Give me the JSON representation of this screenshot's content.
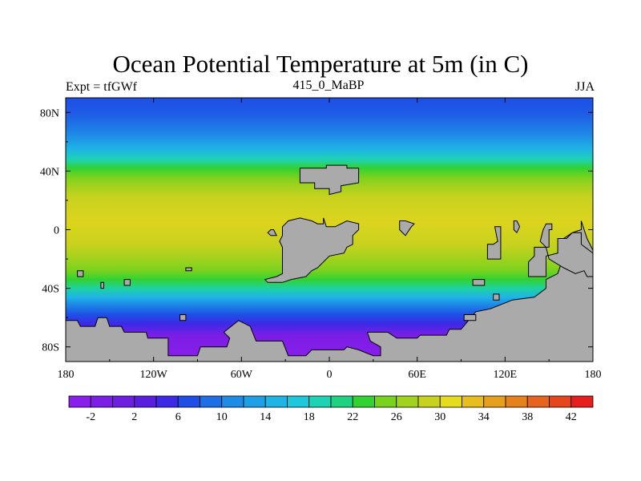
{
  "title": "Ocean Potential Temperature at 5m (in C)",
  "subtitle_left": "Expt = tfGWf",
  "subtitle_center": "415_0_MaBP",
  "subtitle_right": "JJA",
  "axes": {
    "lon_ticks": [
      {
        "value": -180,
        "label": "180"
      },
      {
        "value": -120,
        "label": "120W"
      },
      {
        "value": -60,
        "label": "60W"
      },
      {
        "value": 0,
        "label": "0"
      },
      {
        "value": 60,
        "label": "60E"
      },
      {
        "value": 120,
        "label": "120E"
      },
      {
        "value": 180,
        "label": "180"
      }
    ],
    "lat_ticks": [
      {
        "value": 80,
        "label": "80N"
      },
      {
        "value": 40,
        "label": "40N"
      },
      {
        "value": 0,
        "label": "0"
      },
      {
        "value": -40,
        "label": "40S"
      },
      {
        "value": -80,
        "label": "80S"
      }
    ],
    "lon_range": [
      -180,
      180
    ],
    "lat_range": [
      -90,
      90
    ]
  },
  "colorbar": {
    "colors": [
      "#8a1eeb",
      "#7b1ee6",
      "#6e1ee0",
      "#5a1ee0",
      "#3c2ae6",
      "#1e4ee6",
      "#1e6ee6",
      "#1e8ce6",
      "#1ea0e6",
      "#1eb4e6",
      "#1ec8dc",
      "#1ed2b4",
      "#1ed282",
      "#32d232",
      "#78d21e",
      "#a0d21e",
      "#c8d21e",
      "#e6dc1e",
      "#e6be1e",
      "#e6a01e",
      "#e6821e",
      "#e6641e",
      "#e6461e",
      "#e61e1e"
    ],
    "labels": [
      "-2",
      "2",
      "6",
      "10",
      "14",
      "18",
      "22",
      "26",
      "30",
      "34",
      "38",
      "42"
    ]
  },
  "zonal_temperature": [
    {
      "lat": 90,
      "color": "#1e50e6"
    },
    {
      "lat": 80,
      "color": "#1e5ae6"
    },
    {
      "lat": 70,
      "color": "#1e78e6"
    },
    {
      "lat": 62,
      "color": "#1e96e6"
    },
    {
      "lat": 55,
      "color": "#1eb4e6"
    },
    {
      "lat": 48,
      "color": "#1ed2b4"
    },
    {
      "lat": 42,
      "color": "#32d232"
    },
    {
      "lat": 36,
      "color": "#78d21e"
    },
    {
      "lat": 30,
      "color": "#a0d21e"
    },
    {
      "lat": 22,
      "color": "#c8d21e"
    },
    {
      "lat": 5,
      "color": "#dcd41e"
    },
    {
      "lat": -10,
      "color": "#c8d21e"
    },
    {
      "lat": -20,
      "color": "#a0d21e"
    },
    {
      "lat": -28,
      "color": "#78d21e"
    },
    {
      "lat": -34,
      "color": "#32d232"
    },
    {
      "lat": -40,
      "color": "#1ed2a0"
    },
    {
      "lat": -46,
      "color": "#1eb4e6"
    },
    {
      "lat": -52,
      "color": "#1e82e6"
    },
    {
      "lat": -58,
      "color": "#1e50e6"
    },
    {
      "lat": -64,
      "color": "#3c2ae6"
    },
    {
      "lat": -72,
      "color": "#7b1ee6"
    },
    {
      "lat": -90,
      "color": "#8a1eeb"
    }
  ],
  "land_color": "#aaaaaa",
  "land_masses": [
    {
      "name": "land-antarctica",
      "points": [
        [
          -180,
          -62
        ],
        [
          -172,
          -62
        ],
        [
          -170,
          -66
        ],
        [
          -160,
          -66
        ],
        [
          -158,
          -60
        ],
        [
          -152,
          -60
        ],
        [
          -150,
          -66
        ],
        [
          -142,
          -66
        ],
        [
          -140,
          -70
        ],
        [
          -125,
          -70
        ],
        [
          -124,
          -74
        ],
        [
          -110,
          -74
        ],
        [
          -110,
          -86
        ],
        [
          -90,
          -86
        ],
        [
          -88,
          -80
        ],
        [
          -70,
          -80
        ],
        [
          -68,
          -74
        ],
        [
          -72,
          -70
        ],
        [
          -62,
          -62
        ],
        [
          -54,
          -66
        ],
        [
          -50,
          -76
        ],
        [
          -32,
          -76
        ],
        [
          -28,
          -86
        ],
        [
          -16,
          -86
        ],
        [
          -12,
          -82
        ],
        [
          10,
          -82
        ],
        [
          12,
          -80
        ],
        [
          20,
          -82
        ],
        [
          30,
          -86
        ],
        [
          35,
          -86
        ],
        [
          35,
          -80
        ],
        [
          28,
          -76
        ],
        [
          26,
          -70
        ],
        [
          40,
          -70
        ],
        [
          46,
          -74
        ],
        [
          60,
          -74
        ],
        [
          62,
          -72
        ],
        [
          80,
          -72
        ],
        [
          82,
          -68
        ],
        [
          90,
          -68
        ],
        [
          95,
          -62
        ],
        [
          100,
          -56
        ],
        [
          110,
          -54
        ],
        [
          125,
          -48
        ],
        [
          140,
          -46
        ],
        [
          148,
          -40
        ],
        [
          148,
          -34
        ],
        [
          156,
          -30
        ],
        [
          160,
          -18
        ],
        [
          160,
          -6
        ],
        [
          166,
          -2
        ],
        [
          172,
          0
        ],
        [
          172,
          6
        ],
        [
          176,
          -6
        ],
        [
          180,
          -14
        ],
        [
          180,
          -90
        ],
        [
          -180,
          -90
        ]
      ]
    },
    {
      "name": "land-north-landmass",
      "points": [
        [
          -20,
          38
        ],
        [
          -20,
          32
        ],
        [
          -10,
          32
        ],
        [
          -10,
          28
        ],
        [
          0,
          28
        ],
        [
          0,
          24
        ],
        [
          8,
          26
        ],
        [
          8,
          30
        ],
        [
          20,
          32
        ],
        [
          20,
          42
        ],
        [
          12,
          42
        ],
        [
          12,
          44
        ],
        [
          -2,
          44
        ],
        [
          -2,
          42
        ],
        [
          -20,
          42
        ]
      ]
    },
    {
      "name": "land-central-landmass",
      "points": [
        [
          -32,
          2
        ],
        [
          -28,
          6
        ],
        [
          -20,
          8
        ],
        [
          -12,
          6
        ],
        [
          -8,
          4
        ],
        [
          -4,
          4
        ],
        [
          -4,
          8
        ],
        [
          -2,
          2
        ],
        [
          4,
          2
        ],
        [
          8,
          4
        ],
        [
          12,
          6
        ],
        [
          20,
          4
        ],
        [
          20,
          0
        ],
        [
          16,
          -4
        ],
        [
          16,
          -10
        ],
        [
          12,
          -12
        ],
        [
          10,
          -16
        ],
        [
          0,
          -18
        ],
        [
          -4,
          -22
        ],
        [
          -8,
          -26
        ],
        [
          -12,
          -28
        ],
        [
          -16,
          -32
        ],
        [
          -26,
          -34
        ],
        [
          -32,
          -36
        ],
        [
          -42,
          -36
        ],
        [
          -44,
          -34
        ],
        [
          -36,
          -32
        ],
        [
          -32,
          -30
        ],
        [
          -32,
          -12
        ],
        [
          -34,
          -8
        ],
        [
          -32,
          -4
        ]
      ]
    },
    {
      "name": "land-east-landmass",
      "points": [
        [
          150,
          0
        ],
        [
          150,
          -12
        ],
        [
          140,
          -12
        ],
        [
          140,
          -18
        ],
        [
          136,
          -22
        ],
        [
          136,
          -32
        ],
        [
          148,
          -32
        ],
        [
          148,
          -18
        ],
        [
          156,
          -16
        ],
        [
          156,
          -6
        ],
        [
          162,
          -6
        ],
        [
          166,
          -2
        ],
        [
          172,
          -2
        ],
        [
          172,
          -10
        ],
        [
          180,
          -16
        ],
        [
          180,
          -32
        ],
        [
          176,
          -32
        ],
        [
          174,
          -28
        ],
        [
          168,
          -30
        ],
        [
          160,
          -26
        ],
        [
          150,
          -20
        ],
        [
          148,
          -12
        ],
        [
          144,
          -8
        ],
        [
          146,
          0
        ],
        [
          148,
          4
        ],
        [
          152,
          4
        ],
        [
          152,
          0
        ]
      ]
    },
    {
      "name": "land-peninsula-west",
      "points": [
        [
          -38,
          0
        ],
        [
          -36,
          -4
        ],
        [
          -40,
          -4
        ],
        [
          -42,
          -2
        ],
        [
          -40,
          0
        ]
      ]
    },
    {
      "name": "land-small-island-a",
      "points": [
        [
          48,
          6
        ],
        [
          48,
          0
        ],
        [
          52,
          -4
        ],
        [
          56,
          2
        ],
        [
          58,
          4
        ],
        [
          52,
          6
        ]
      ]
    },
    {
      "name": "land-small-island-b",
      "points": [
        [
          117,
          2
        ],
        [
          117,
          -20
        ],
        [
          108,
          -20
        ],
        [
          108,
          -10
        ],
        [
          112,
          -10
        ],
        [
          115,
          -8
        ],
        [
          113,
          2
        ]
      ]
    },
    {
      "name": "land-small-island-c",
      "points": [
        [
          126,
          6
        ],
        [
          126,
          0
        ],
        [
          128,
          -2
        ],
        [
          130,
          2
        ],
        [
          128,
          6
        ]
      ]
    },
    {
      "name": "land-island-d",
      "points": [
        [
          -172,
          -28
        ],
        [
          -168,
          -28
        ],
        [
          -168,
          -32
        ],
        [
          -172,
          -32
        ]
      ]
    },
    {
      "name": "land-island-e",
      "points": [
        [
          -156,
          -36
        ],
        [
          -154,
          -36
        ],
        [
          -154,
          -40
        ],
        [
          -156,
          -40
        ]
      ]
    },
    {
      "name": "land-island-f",
      "points": [
        [
          -140,
          -34
        ],
        [
          -136,
          -34
        ],
        [
          -136,
          -38
        ],
        [
          -140,
          -38
        ]
      ]
    },
    {
      "name": "land-island-g",
      "points": [
        [
          -98,
          -26
        ],
        [
          -94,
          -26
        ],
        [
          -94,
          -28
        ],
        [
          -98,
          -28
        ]
      ]
    },
    {
      "name": "land-island-h",
      "points": [
        [
          98,
          -34
        ],
        [
          106,
          -34
        ],
        [
          106,
          -38
        ],
        [
          98,
          -38
        ]
      ]
    },
    {
      "name": "land-island-i",
      "points": [
        [
          112,
          -44
        ],
        [
          116,
          -44
        ],
        [
          116,
          -48
        ],
        [
          112,
          -48
        ]
      ]
    },
    {
      "name": "land-island-j",
      "points": [
        [
          92,
          -58
        ],
        [
          100,
          -58
        ],
        [
          100,
          -62
        ],
        [
          92,
          -62
        ]
      ]
    },
    {
      "name": "land-island-k",
      "points": [
        [
          -102,
          -58
        ],
        [
          -98,
          -58
        ],
        [
          -98,
          -62
        ],
        [
          -102,
          -62
        ]
      ]
    }
  ]
}
